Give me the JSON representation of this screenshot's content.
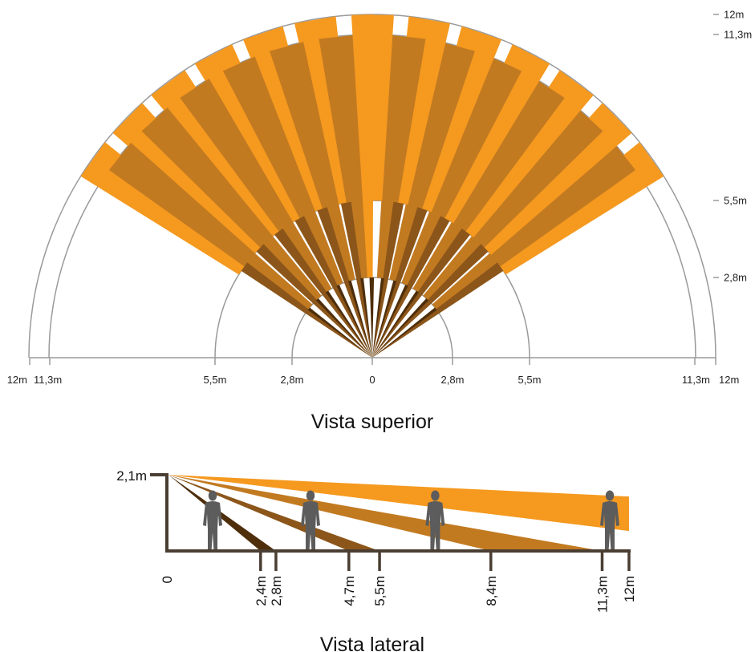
{
  "colors": {
    "orange": "#f5991f",
    "medium": "#c27a21",
    "dark": "#8c561a",
    "darkest": "#4e2e0b",
    "circle": "#9a9a9a",
    "axis": "#4a3e33",
    "figure": "#5c5c5c"
  },
  "top_view": {
    "caption": "Vista superior",
    "radii_m": [
      2.8,
      5.5,
      11.3,
      12
    ],
    "axis_labels": {
      "left": [
        "12m",
        "11,3m",
        "5,5m",
        "2,8m"
      ],
      "center": "0",
      "right": [
        "2,8m",
        "5,5m",
        "11,3m",
        "12m"
      ]
    },
    "side_labels": [
      "12m",
      "11,3m",
      "5,5m",
      "2,8m"
    ],
    "center_beam": {
      "angle_deg": 90,
      "range_m": 2.8
    },
    "beam_angles_deg": [
      37,
      46,
      55,
      64,
      73,
      82,
      98,
      107,
      116,
      125,
      134,
      143
    ],
    "beam_layers": [
      {
        "name": "far",
        "inner_m": 5.5,
        "outer_m": 12,
        "color": "orange"
      },
      {
        "name": "mid",
        "inner_m": 2.8,
        "outer_m": 11.3,
        "color": "medium"
      },
      {
        "name": "near",
        "inner_m": 0,
        "outer_m": 5.5,
        "color": "dark"
      },
      {
        "name": "close",
        "inner_m": 0,
        "outer_m": 2.8,
        "color": "darkest"
      }
    ]
  },
  "side_view": {
    "caption": "Vista lateral",
    "height_label": "2,1m",
    "ticks": [
      {
        "value": 0,
        "label": "0"
      },
      {
        "value": 2.4,
        "label": "2,4m"
      },
      {
        "value": 2.8,
        "label": "2,8m"
      },
      {
        "value": 4.7,
        "label": "4,7m"
      },
      {
        "value": 5.5,
        "label": "5,5m"
      },
      {
        "value": 8.4,
        "label": "8,4m"
      },
      {
        "value": 11.3,
        "label": "11,3m"
      },
      {
        "value": 12,
        "label": "12m"
      }
    ],
    "beams": [
      {
        "from_m": 2.4,
        "to_m": 2.8,
        "color": "darkest"
      },
      {
        "from_m": 4.7,
        "to_m": 5.5,
        "color": "dark"
      },
      {
        "from_m": 8.4,
        "to_m": 11.3,
        "color": "medium"
      },
      {
        "far_edge_upper_m": 1.5,
        "far_edge_lower_m": 0.55,
        "at_m": 12,
        "color": "orange"
      }
    ],
    "people_at_m": [
      1.15,
      3.7,
      6.95,
      11.5
    ]
  }
}
